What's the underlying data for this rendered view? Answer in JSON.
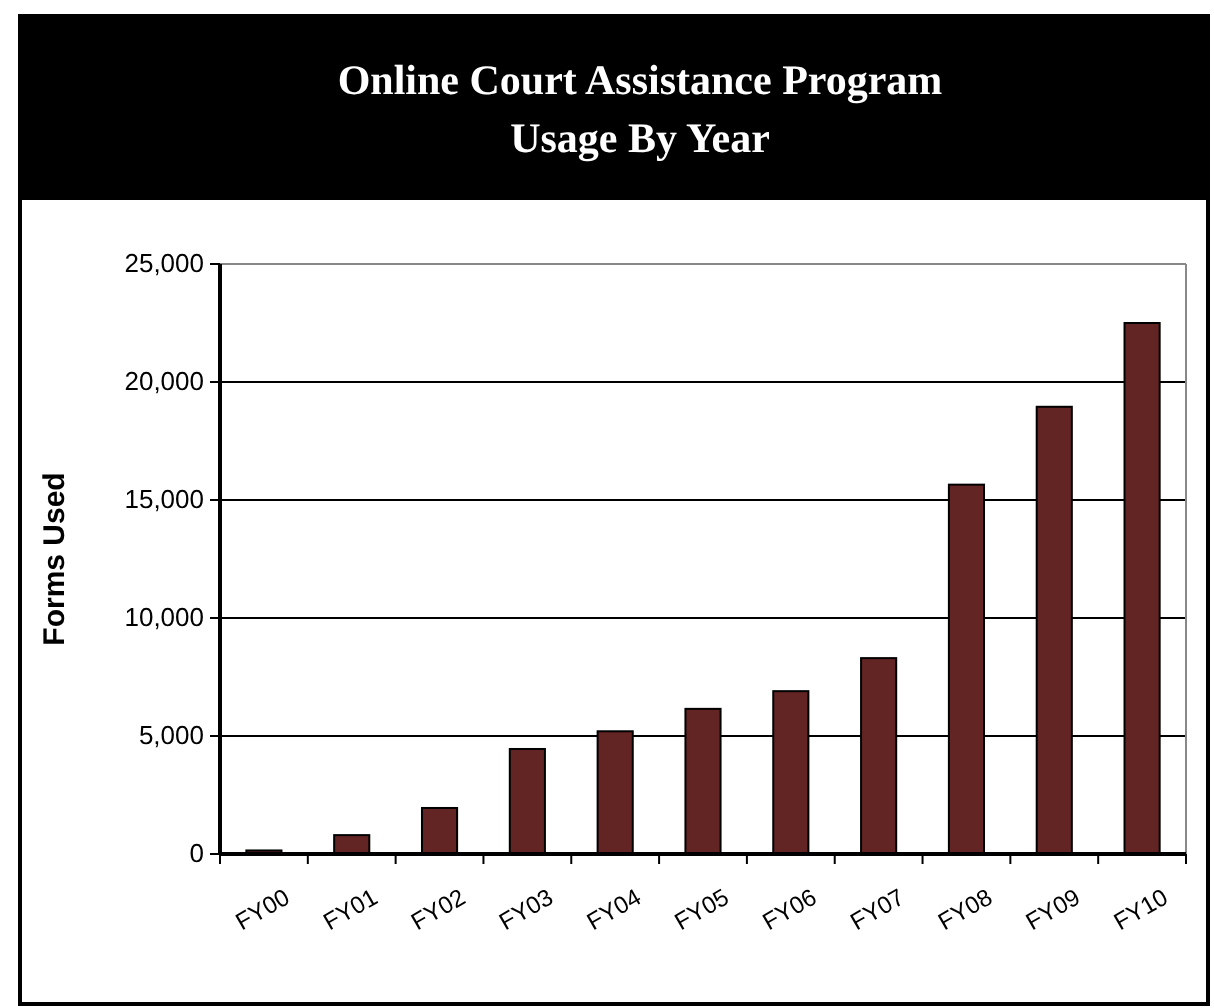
{
  "chart_data": {
    "type": "bar",
    "title": "Online Court Assistance Program\nUsage By Year",
    "ylabel": "Forms Used",
    "categories": [
      "FY00",
      "FY01",
      "FY02",
      "FY03",
      "FY04",
      "FY05",
      "FY06",
      "FY07",
      "FY08",
      "FY09",
      "FY10"
    ],
    "values": [
      150,
      800,
      1950,
      4450,
      5200,
      6150,
      6900,
      8300,
      15650,
      18950,
      22500
    ],
    "color": "#632523",
    "ylim": [
      0,
      25000
    ],
    "yticks": [
      {
        "value": 0,
        "label": "0"
      },
      {
        "value": 5000,
        "label": "5,000"
      },
      {
        "value": 10000,
        "label": "10,000"
      },
      {
        "value": 15000,
        "label": "15,000"
      },
      {
        "value": 20000,
        "label": "20,000"
      },
      {
        "value": 25000,
        "label": "25,000"
      }
    ],
    "grid": "y"
  }
}
